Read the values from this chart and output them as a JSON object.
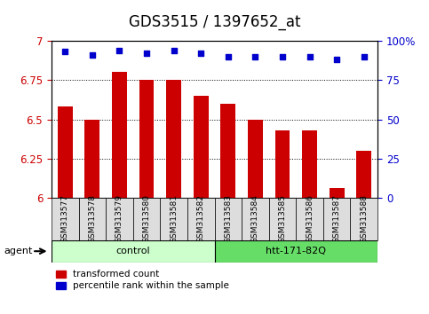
{
  "title": "GDS3515 / 1397652_at",
  "samples": [
    "GSM313577",
    "GSM313578",
    "GSM313579",
    "GSM313580",
    "GSM313581",
    "GSM313582",
    "GSM313583",
    "GSM313584",
    "GSM313585",
    "GSM313586",
    "GSM313587",
    "GSM313588"
  ],
  "bar_values": [
    6.58,
    6.5,
    6.8,
    6.75,
    6.75,
    6.65,
    6.6,
    6.5,
    6.43,
    6.43,
    6.06,
    6.3
  ],
  "dot_values": [
    93,
    91,
    94,
    92,
    94,
    92,
    90,
    90,
    90,
    90,
    88,
    90
  ],
  "dot_scale_max": 100,
  "ylim_left": [
    6.0,
    7.0
  ],
  "ylim_right": [
    0,
    100
  ],
  "yticks_left": [
    6.0,
    6.25,
    6.5,
    6.75,
    7.0
  ],
  "ytick_labels_left": [
    "6",
    "6.25",
    "6.5",
    "6.75",
    "7"
  ],
  "yticks_right": [
    0,
    25,
    50,
    75,
    100
  ],
  "ytick_labels_right": [
    "0",
    "25",
    "50",
    "75",
    "100%"
  ],
  "bar_color": "#cc0000",
  "dot_color": "#0000cc",
  "group1_label": "control",
  "group2_label": "htt-171-82Q",
  "group1_count": 6,
  "group2_count": 6,
  "group1_bg": "#ccffcc",
  "group2_bg": "#66dd66",
  "agent_label": "agent",
  "legend_bar_label": "transformed count",
  "legend_dot_label": "percentile rank within the sample",
  "grid_color": "black",
  "sample_bg_color": "#dddddd",
  "title_fontsize": 12,
  "tick_fontsize": 8.5,
  "label_fontsize": 8.5
}
